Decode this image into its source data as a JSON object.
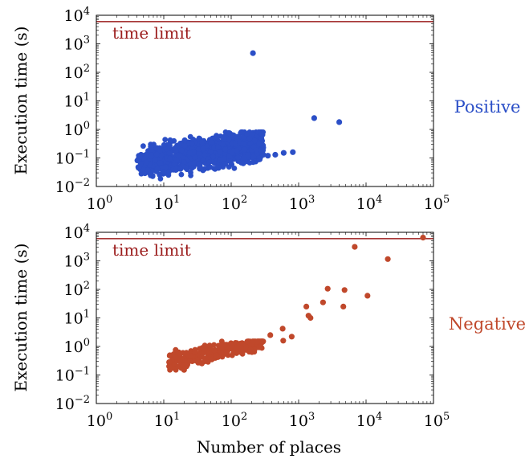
{
  "chart_data": [
    {
      "type": "scatter",
      "panel": "top",
      "series": [
        {
          "name": "Positive",
          "color": "#2b4fc7",
          "cluster": {
            "x_range": [
              4,
              300
            ],
            "y_range": [
              0.01,
              0.8
            ],
            "note": "dense cloud"
          },
          "points": [
            [
              210,
              470
            ],
            [
              1700,
              2.5
            ],
            [
              4000,
              1.8
            ],
            [
              820,
              0.16
            ],
            [
              600,
              0.15
            ],
            [
              450,
              0.13
            ],
            [
              350,
              0.12
            ],
            [
              300,
              0.13
            ]
          ]
        }
      ],
      "x_scale": "log",
      "y_scale": "log",
      "xlim": [
        1,
        100000
      ],
      "ylim": [
        0.01,
        10000
      ],
      "xlabel": "",
      "ylabel": "Execution time (s)",
      "time_limit": {
        "value": 6000,
        "label": "time limit",
        "color": "#9b1c1c"
      },
      "side_label": "Positive",
      "x_ticks": [
        {
          "base": "10",
          "exp": "0"
        },
        {
          "base": "10",
          "exp": "1"
        },
        {
          "base": "10",
          "exp": "2"
        },
        {
          "base": "10",
          "exp": "3"
        },
        {
          "base": "10",
          "exp": "4"
        },
        {
          "base": "10",
          "exp": "5"
        }
      ],
      "y_ticks": [
        {
          "base": "10",
          "exp": "−2"
        },
        {
          "base": "10",
          "exp": "−1"
        },
        {
          "base": "10",
          "exp": "0"
        },
        {
          "base": "10",
          "exp": "1"
        },
        {
          "base": "10",
          "exp": "2"
        },
        {
          "base": "10",
          "exp": "3"
        },
        {
          "base": "10",
          "exp": "4"
        }
      ]
    },
    {
      "type": "scatter",
      "panel": "bottom",
      "series": [
        {
          "name": "Negative",
          "color": "#c0482b",
          "cluster": {
            "x_range": [
              12,
              300
            ],
            "y_range": [
              0.15,
              1.5
            ],
            "note": "dense cloud"
          },
          "points": [
            [
              70000,
              6500
            ],
            [
              21000,
              1150
            ],
            [
              10500,
              60
            ],
            [
              6800,
              3100
            ],
            [
              4800,
              95
            ],
            [
              4600,
              25
            ],
            [
              2700,
              105
            ],
            [
              2300,
              35
            ],
            [
              1400,
              12
            ],
            [
              1300,
              25
            ],
            [
              1500,
              10
            ],
            [
              790,
              2.2
            ],
            [
              580,
              4.2
            ],
            [
              590,
              1.6
            ],
            [
              380,
              2.5
            ],
            [
              12,
              0.2
            ],
            [
              12,
              0.28
            ],
            [
              15,
              0.62
            ],
            [
              15,
              0.75
            ],
            [
              20,
              0.15
            ]
          ]
        }
      ],
      "x_scale": "log",
      "y_scale": "log",
      "xlim": [
        1,
        100000
      ],
      "ylim": [
        0.01,
        10000
      ],
      "xlabel": "Number of places",
      "ylabel": "Execution time (s)",
      "time_limit": {
        "value": 6000,
        "label": "time limit",
        "color": "#9b1c1c"
      },
      "side_label": "Negative",
      "x_ticks": [
        {
          "base": "10",
          "exp": "0"
        },
        {
          "base": "10",
          "exp": "1"
        },
        {
          "base": "10",
          "exp": "2"
        },
        {
          "base": "10",
          "exp": "3"
        },
        {
          "base": "10",
          "exp": "4"
        },
        {
          "base": "10",
          "exp": "5"
        }
      ],
      "y_ticks": [
        {
          "base": "10",
          "exp": "−2"
        },
        {
          "base": "10",
          "exp": "−1"
        },
        {
          "base": "10",
          "exp": "0"
        },
        {
          "base": "10",
          "exp": "1"
        },
        {
          "base": "10",
          "exp": "2"
        },
        {
          "base": "10",
          "exp": "3"
        },
        {
          "base": "10",
          "exp": "4"
        }
      ]
    }
  ]
}
